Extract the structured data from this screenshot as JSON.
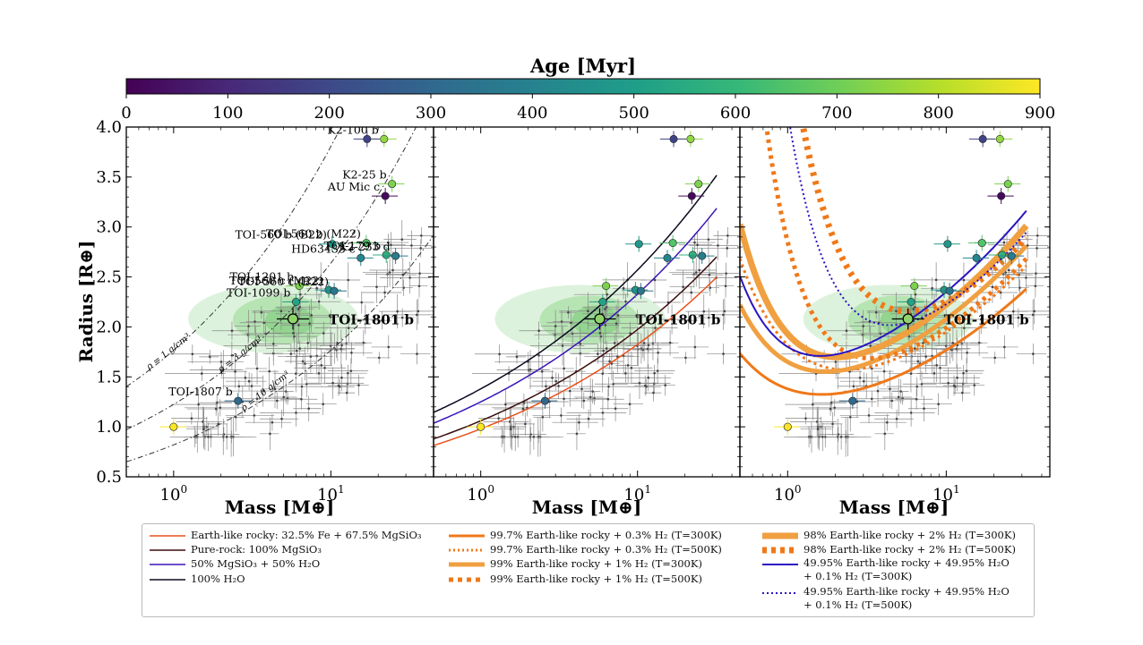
{
  "colorbar": {
    "label": "Age [Myr]",
    "ticks": [
      0,
      100,
      200,
      300,
      400,
      500,
      600,
      700,
      800,
      900
    ],
    "colors": [
      "#440154",
      "#482878",
      "#3e4989",
      "#31688e",
      "#26828e",
      "#1f9e89",
      "#35b779",
      "#6ece58",
      "#b5de2b",
      "#fde725"
    ],
    "range": [
      0,
      900
    ]
  },
  "axes": {
    "ylabel": "Radius [R⊕]",
    "xlabel": "Mass [M⊕]",
    "yticks": [
      "0.5",
      "1.0",
      "1.5",
      "2.0",
      "2.5",
      "3.0",
      "3.5",
      "4.0"
    ],
    "xticks": [
      "10^0",
      "10^1"
    ]
  },
  "chart_data": [
    {
      "type": "scatter",
      "panel": 1,
      "xscale": "log",
      "xlim": [
        0.5,
        45
      ],
      "ylim": [
        0.5,
        4.0
      ],
      "density_lines": [
        {
          "label": "ρ = 1 g/cm³",
          "rho": 1
        },
        {
          "label": "ρ = 3 g/cm³",
          "rho": 3
        },
        {
          "label": "ρ = 10 g/cm³",
          "rho": 10
        }
      ],
      "highlight": {
        "label": "TOI-1801 b",
        "mass": 5.74,
        "radius": 2.08
      },
      "planets": [
        {
          "name": "K2-100 b",
          "mass": 21.8,
          "radius": 3.88,
          "age": 750
        },
        {
          "name": "K2-25 b",
          "mass": 24.5,
          "radius": 3.43,
          "age": 720
        },
        {
          "name": "AU Mic c",
          "mass": 22.2,
          "radius": 3.31,
          "age": 22
        },
        {
          "name": "TOI-560 b (M22)",
          "mass": 16.8,
          "radius": 2.84,
          "age": 650
        },
        {
          "name": "TOI-560 b (B22)",
          "mass": 10.2,
          "radius": 2.83,
          "age": 480
        },
        {
          "name": "TOI-179 b",
          "mass": 22.5,
          "radius": 2.72,
          "age": 580
        },
        {
          "name": "HD63433 c",
          "mass": 15.5,
          "radius": 2.69,
          "age": 410
        },
        {
          "name": "TOI-1201 b",
          "mass": 6.3,
          "radius": 2.41,
          "age": 720
        },
        {
          "name": "TOI-560 c (M22)",
          "mass": 9.7,
          "radius": 2.37,
          "age": 480
        },
        {
          "name": "TOI-1099 b",
          "mass": 6.0,
          "radius": 2.25,
          "age": 520
        },
        {
          "name": "TOI-560 c (B22)",
          "mass": 10.5,
          "radius": 2.36,
          "age": 350
        },
        {
          "name": "K2-233 d",
          "mass": 25.8,
          "radius": 2.71,
          "age": 380
        },
        {
          "name": "TOI-1807 b",
          "mass": 2.57,
          "radius": 1.26,
          "age": 300
        },
        {
          "name": "",
          "mass": 17.0,
          "radius": 3.88,
          "age": 180
        },
        {
          "name": "",
          "mass": 1.0,
          "radius": 1.0,
          "age": 4500
        }
      ]
    },
    {
      "type": "line",
      "panel": 2,
      "xscale": "log",
      "xlim": [
        0.5,
        45
      ],
      "ylim": [
        0.5,
        4.0
      ],
      "highlight": {
        "label": "TOI-1801 b",
        "mass": 5.74,
        "radius": 2.08
      },
      "models": [
        "Earth-like rocky: 32.5% Fe + 67.5% MgSiO₃",
        "Pure-rock: 100% MgSiO₃",
        "50% MgSiO₃ + 50% H₂O",
        "100% H₂O"
      ]
    },
    {
      "type": "line",
      "panel": 3,
      "xscale": "log",
      "xlim": [
        0.5,
        45
      ],
      "ylim": [
        0.5,
        4.0
      ],
      "highlight": {
        "label": "TOI-1801 b",
        "mass": 5.74,
        "radius": 2.08
      },
      "models": [
        "99.7% Earth-like rocky + 0.3% H₂ (T=300K)",
        "99.7% Earth-like rocky + 0.3% H₂ (T=500K)",
        "99% Earth-like rocky + 1% H₂ (T=300K)",
        "99% Earth-like rocky + 1% H₂ (T=500K)",
        "98% Earth-like rocky + 2% H₂ (T=300K)",
        "98% Earth-like rocky + 2% H₂ (T=500K)",
        "49.95% Earth-like rocky + 49.95% H₂O + 0.1% H₂ (T=300K)",
        "49.95% Earth-like rocky + 49.95% H₂O + 0.1% H₂ (T=500K)"
      ]
    }
  ],
  "legend": {
    "col1": [
      {
        "label": "Earth-like rocky: 32.5% Fe + 67.5% MgSiO₃",
        "color": "#e8501b",
        "style": "solid",
        "width": 1.5
      },
      {
        "label": "Pure-rock: 100% MgSiO₃",
        "color": "#3a0d0d",
        "style": "solid",
        "width": 1.5
      },
      {
        "label": "50% MgSiO₃ + 50% H₂O",
        "color": "#3a14b8",
        "style": "solid",
        "width": 1.5
      },
      {
        "label": "100% H₂O",
        "color": "#0a0a1e",
        "style": "solid",
        "width": 1.5
      }
    ],
    "col2": [
      {
        "label": "99.7% Earth-like rocky + 0.3% H₂ (T=300K)",
        "color": "#f07818",
        "style": "solid",
        "width": 3
      },
      {
        "label": "99.7% Earth-like rocky + 0.3% H₂ (T=500K)",
        "color": "#f07818",
        "style": "dotted",
        "width": 3
      },
      {
        "label": "99% Earth-like rocky + 1% H₂ (T=300K)",
        "color": "#f0a040",
        "style": "solid",
        "width": 5
      },
      {
        "label": "99% Earth-like rocky + 1% H₂ (T=500K)",
        "color": "#f07818",
        "style": "dotted",
        "width": 5
      }
    ],
    "col3": [
      {
        "label": "98% Earth-like rocky + 2% H₂ (T=300K)",
        "color": "#f0a040",
        "style": "solid",
        "width": 7
      },
      {
        "label": "98% Earth-like rocky + 2% H₂ (T=500K)",
        "color": "#f07818",
        "style": "dotted",
        "width": 7
      },
      {
        "label": "49.95% Earth-like rocky + 49.95% H₂O",
        "label2": "+ 0.1% H₂ (T=300K)",
        "color": "#2a14c0",
        "style": "solid",
        "width": 2
      },
      {
        "label": "49.95% Earth-like rocky + 49.95% H₂O",
        "label2": "+ 0.1% H₂ (T=500K)",
        "color": "#2a14c0",
        "style": "dotted",
        "width": 2
      }
    ]
  }
}
